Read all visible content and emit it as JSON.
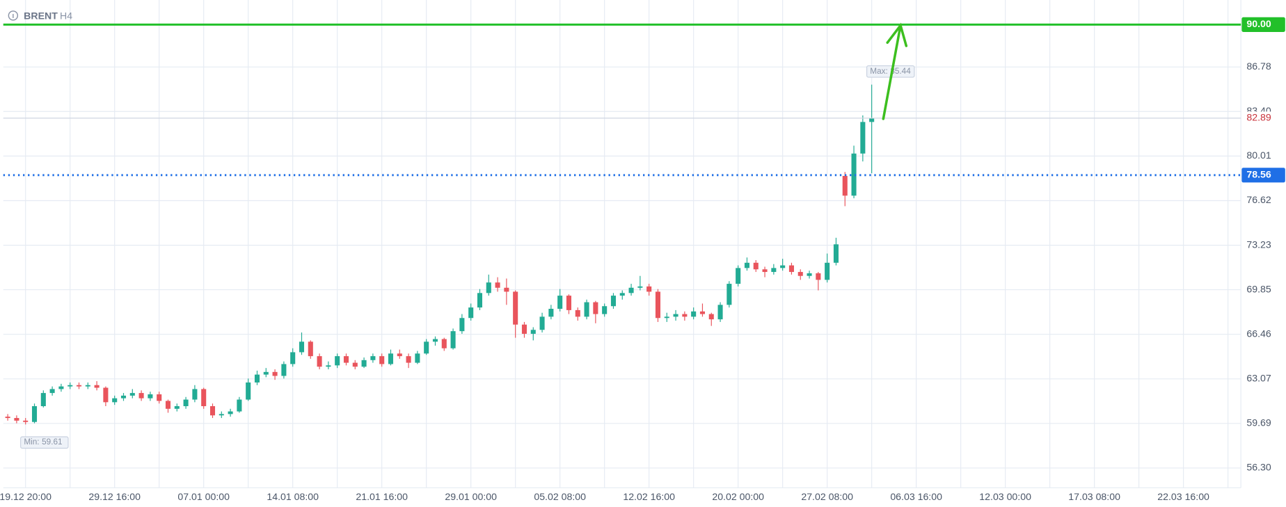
{
  "chart_data": {
    "type": "candlestick",
    "symbol": "BRENT",
    "timeframe": "H4",
    "up_color": "#22ab94",
    "down_color": "#e9545c",
    "ylim": [
      54.8,
      91.87
    ],
    "yticks": [
      {
        "value": 56.3,
        "label": "56.30"
      },
      59.69,
      63.07,
      66.46,
      69.85,
      73.23,
      76.62,
      80.01,
      {
        "value": 83.4,
        "label": "83.40"
      },
      86.78
    ],
    "grid": true,
    "x_tick_labels": [
      "19.12 20:00",
      "29.12 16:00",
      "07.01 00:00",
      "14.01 08:00",
      "21.01 16:00",
      "29.01 00:00",
      "05.02 08:00",
      "12.02 16:00",
      "20.02 00:00",
      "27.02 08:00",
      "06.03 16:00",
      "12.03 00:00",
      "17.03 08:00",
      "22.03 16:00"
    ],
    "min_label": "Min:",
    "max_label": "Max:",
    "levels": [
      {
        "value": 90,
        "label": "90.00",
        "color": "#22c02a",
        "style": "solid"
      },
      {
        "value": 78.56,
        "color": "#1f6fe6",
        "style": "dotted"
      }
    ],
    "candles": [
      [
        60.2,
        60.4,
        59.9,
        60.1
      ],
      [
        60.1,
        60.3,
        59.7,
        59.9
      ],
      [
        59.9,
        60.1,
        59.61,
        59.8
      ],
      [
        59.8,
        61.2,
        59.7,
        61.0
      ],
      [
        61.0,
        62.2,
        60.9,
        62.0
      ],
      [
        62.0,
        62.5,
        61.8,
        62.3
      ],
      [
        62.3,
        62.7,
        62.1,
        62.5
      ],
      [
        62.5,
        62.8,
        62.3,
        62.6
      ],
      [
        62.6,
        62.8,
        62.3,
        62.5
      ],
      [
        62.5,
        62.8,
        62.3,
        62.6
      ],
      [
        62.6,
        62.9,
        62.2,
        62.4
      ],
      [
        62.4,
        62.5,
        61.0,
        61.3
      ],
      [
        61.3,
        61.8,
        61.1,
        61.6
      ],
      [
        61.6,
        62.0,
        61.4,
        61.8
      ],
      [
        61.8,
        62.3,
        61.6,
        62.0
      ],
      [
        62.0,
        62.2,
        61.4,
        61.6
      ],
      [
        61.6,
        62.1,
        61.4,
        61.9
      ],
      [
        61.9,
        62.1,
        61.2,
        61.4
      ],
      [
        61.4,
        61.5,
        60.5,
        60.8
      ],
      [
        60.8,
        61.2,
        60.6,
        61.0
      ],
      [
        61.0,
        61.7,
        60.8,
        61.5
      ],
      [
        61.5,
        62.6,
        61.3,
        62.3
      ],
      [
        62.3,
        62.4,
        60.8,
        61.0
      ],
      [
        61.0,
        61.2,
        60.1,
        60.3
      ],
      [
        60.3,
        60.6,
        60.1,
        60.4
      ],
      [
        60.4,
        60.8,
        60.2,
        60.6
      ],
      [
        60.6,
        61.7,
        60.5,
        61.5
      ],
      [
        61.5,
        63.1,
        61.4,
        62.8
      ],
      [
        62.8,
        63.7,
        62.6,
        63.4
      ],
      [
        63.4,
        63.9,
        63.2,
        63.6
      ],
      [
        63.6,
        63.8,
        63.0,
        63.3
      ],
      [
        63.3,
        64.4,
        63.1,
        64.2
      ],
      [
        64.2,
        65.4,
        64.0,
        65.1
      ],
      [
        65.1,
        66.6,
        64.9,
        65.9
      ],
      [
        65.9,
        66.0,
        64.6,
        64.8
      ],
      [
        64.8,
        65.0,
        63.8,
        64.0
      ],
      [
        64.0,
        64.4,
        63.8,
        64.1
      ],
      [
        64.1,
        65.0,
        63.9,
        64.8
      ],
      [
        64.8,
        65.0,
        64.1,
        64.3
      ],
      [
        64.3,
        64.5,
        63.8,
        64.0
      ],
      [
        64.0,
        64.7,
        63.9,
        64.5
      ],
      [
        64.5,
        65.0,
        64.3,
        64.8
      ],
      [
        64.8,
        65.0,
        64.0,
        64.2
      ],
      [
        64.2,
        65.3,
        64.1,
        65.0
      ],
      [
        65.0,
        65.3,
        64.6,
        64.8
      ],
      [
        64.8,
        65.0,
        63.9,
        64.3
      ],
      [
        64.3,
        65.2,
        64.2,
        65.0
      ],
      [
        65.0,
        66.1,
        64.9,
        65.9
      ],
      [
        65.9,
        66.3,
        65.6,
        66.1
      ],
      [
        66.1,
        66.2,
        65.2,
        65.4
      ],
      [
        65.4,
        66.9,
        65.3,
        66.7
      ],
      [
        66.7,
        68.0,
        66.5,
        67.7
      ],
      [
        67.7,
        68.8,
        67.5,
        68.5
      ],
      [
        68.5,
        69.9,
        68.3,
        69.6
      ],
      [
        69.6,
        71.0,
        69.4,
        70.4
      ],
      [
        70.4,
        70.8,
        69.7,
        70.0
      ],
      [
        70.0,
        70.7,
        68.7,
        69.7
      ],
      [
        69.7,
        69.8,
        66.2,
        67.2
      ],
      [
        67.2,
        67.4,
        66.2,
        66.5
      ],
      [
        66.5,
        67.0,
        66.0,
        66.8
      ],
      [
        66.8,
        68.1,
        66.6,
        67.8
      ],
      [
        67.8,
        68.7,
        67.6,
        68.4
      ],
      [
        68.4,
        69.9,
        68.2,
        69.4
      ],
      [
        69.4,
        69.5,
        68.0,
        68.3
      ],
      [
        68.3,
        68.5,
        67.5,
        67.8
      ],
      [
        67.8,
        69.1,
        67.6,
        68.9
      ],
      [
        68.9,
        69.0,
        67.3,
        68.0
      ],
      [
        68.0,
        68.8,
        67.8,
        68.6
      ],
      [
        68.6,
        69.6,
        68.4,
        69.4
      ],
      [
        69.4,
        69.8,
        69.1,
        69.6
      ],
      [
        69.6,
        70.3,
        69.4,
        70.0
      ],
      [
        70.0,
        70.9,
        69.8,
        70.1
      ],
      [
        70.1,
        70.3,
        69.4,
        69.7
      ],
      [
        69.7,
        69.9,
        67.4,
        67.7
      ],
      [
        67.7,
        68.1,
        67.4,
        67.8
      ],
      [
        67.8,
        68.3,
        67.5,
        68.0
      ],
      [
        68.0,
        68.2,
        67.5,
        67.8
      ],
      [
        67.8,
        68.5,
        67.6,
        68.2
      ],
      [
        68.2,
        68.8,
        67.8,
        68.0
      ],
      [
        68.0,
        68.1,
        67.1,
        67.6
      ],
      [
        67.6,
        68.9,
        67.4,
        68.7
      ],
      [
        68.7,
        70.5,
        68.5,
        70.3
      ],
      [
        70.3,
        71.7,
        70.1,
        71.5
      ],
      [
        71.5,
        72.3,
        71.3,
        71.9
      ],
      [
        71.9,
        72.1,
        71.2,
        71.4
      ],
      [
        71.4,
        71.6,
        70.8,
        71.2
      ],
      [
        71.2,
        71.8,
        71.0,
        71.5
      ],
      [
        71.5,
        72.2,
        71.3,
        71.7
      ],
      [
        71.7,
        71.9,
        71.0,
        71.2
      ],
      [
        71.2,
        71.4,
        70.6,
        70.9
      ],
      [
        70.9,
        71.3,
        70.7,
        71.1
      ],
      [
        71.1,
        71.2,
        69.8,
        70.6
      ],
      [
        70.6,
        72.6,
        70.4,
        71.9
      ],
      [
        71.9,
        73.8,
        71.7,
        73.3
      ],
      [
        78.5,
        78.8,
        76.2,
        77.0
      ],
      [
        77.0,
        80.8,
        76.8,
        80.2
      ],
      [
        80.2,
        83.1,
        79.6,
        82.6
      ],
      [
        82.6,
        85.44,
        78.7,
        82.89
      ]
    ]
  }
}
